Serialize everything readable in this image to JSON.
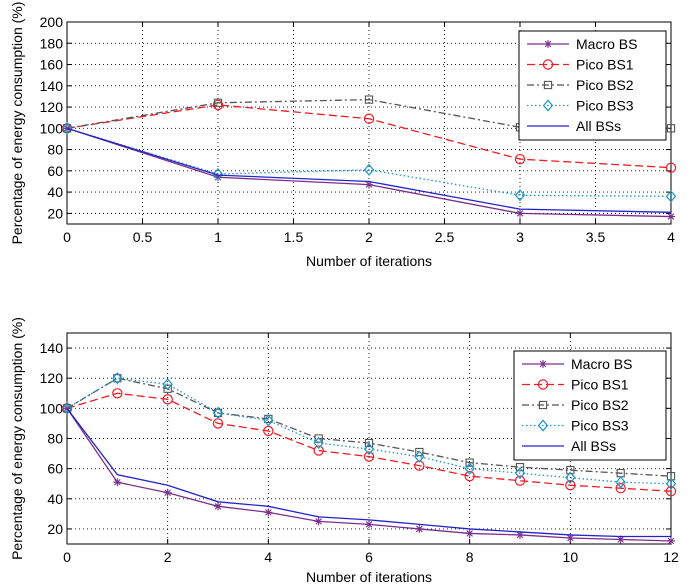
{
  "chart_data": [
    {
      "type": "line",
      "xlabel": "Number of iterations",
      "ylabel": "Percentage of energy consumption (%)",
      "xlim": [
        0,
        4
      ],
      "ylim": [
        10,
        200
      ],
      "xticks": [
        0,
        0.5,
        1,
        1.5,
        2,
        2.5,
        3,
        3.5,
        4
      ],
      "yticks": [
        20,
        40,
        60,
        80,
        100,
        120,
        140,
        160,
        180,
        200
      ],
      "grid": true,
      "legend_position": "top-right",
      "x": [
        0,
        1,
        2,
        3,
        4
      ],
      "series": [
        {
          "name": "Macro BS",
          "values": [
            100,
            54,
            47,
            20,
            17
          ]
        },
        {
          "name": "Pico BS1",
          "values": [
            100,
            122,
            109,
            71,
            63
          ]
        },
        {
          "name": "Pico BS2",
          "values": [
            100,
            124,
            127,
            101,
            100
          ]
        },
        {
          "name": "Pico BS3",
          "values": [
            100,
            57,
            61,
            37,
            36
          ]
        },
        {
          "name": "All BSs",
          "values": [
            100,
            56,
            50,
            24,
            21
          ]
        }
      ]
    },
    {
      "type": "line",
      "xlabel": "Number of iterations",
      "ylabel": "Percentage of energy consumption (%)",
      "xlim": [
        0,
        12
      ],
      "ylim": [
        10,
        150
      ],
      "xticks": [
        0,
        2,
        4,
        6,
        8,
        10,
        12
      ],
      "yticks": [
        20,
        40,
        60,
        80,
        100,
        120,
        140
      ],
      "grid": true,
      "legend_position": "top-right",
      "x": [
        0,
        1,
        2,
        3,
        4,
        5,
        6,
        7,
        8,
        9,
        10,
        11,
        12
      ],
      "series": [
        {
          "name": "Macro BS",
          "values": [
            100,
            51,
            44,
            35,
            31,
            25,
            23,
            20,
            17,
            16,
            14,
            13,
            12
          ]
        },
        {
          "name": "Pico BS1",
          "values": [
            100,
            110,
            106,
            90,
            85,
            72,
            68,
            62,
            55,
            52,
            49,
            47,
            45
          ]
        },
        {
          "name": "Pico BS2",
          "values": [
            100,
            120,
            113,
            97,
            93,
            80,
            77,
            71,
            64,
            61,
            59,
            57,
            55
          ]
        },
        {
          "name": "Pico BS3",
          "values": [
            100,
            120,
            116,
            97,
            92,
            77,
            73,
            68,
            60,
            57,
            54,
            51,
            50
          ]
        },
        {
          "name": "All BSs",
          "values": [
            100,
            56,
            49,
            38,
            35,
            28,
            26,
            23,
            20,
            18,
            16,
            15,
            15
          ]
        }
      ]
    }
  ],
  "styles": {
    "Macro BS": {
      "color": "#7b2f8c",
      "dash": "",
      "marker": "star"
    },
    "Pico BS1": {
      "color": "#ee1c24",
      "dash": "8 4",
      "marker": "circle"
    },
    "Pico BS2": {
      "color": "#555555",
      "dash": "7 3 2 3",
      "marker": "square"
    },
    "Pico BS3": {
      "color": "#1b95c9",
      "dash": "1.5 2.5",
      "marker": "diamond"
    },
    "All BSs": {
      "color": "#2424c8",
      "dash": "",
      "marker": "none"
    }
  }
}
